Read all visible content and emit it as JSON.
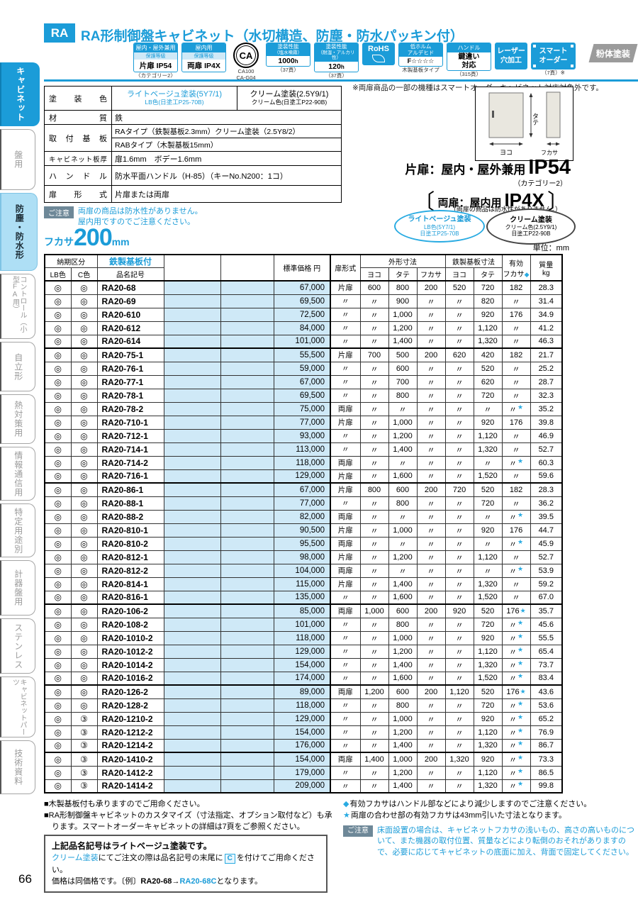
{
  "page_number": "66",
  "sidebar": {
    "tabs": [
      {
        "label": "キャビネット",
        "style": "active"
      },
      {
        "label": "盤用",
        "style": ""
      },
      {
        "label": "防塵・防水形",
        "style": "sub"
      },
      {
        "label": "コントロール（小型FA用）",
        "style": "small"
      },
      {
        "label": "自立形",
        "style": ""
      },
      {
        "label": "熱対策用",
        "style": ""
      },
      {
        "label": "情報通信用",
        "style": ""
      },
      {
        "label": "特定用途別",
        "style": ""
      },
      {
        "label": "計器盤用",
        "style": ""
      },
      {
        "label": "ステンレス",
        "style": ""
      },
      {
        "label": "キャビネットパーツ",
        "style": "small"
      },
      {
        "label": "技術資料",
        "style": ""
      }
    ]
  },
  "header": {
    "ra": "RA",
    "title": "RA形制御盤キャビネット（水切構造、防塵・防水パッキン付）",
    "badges": [
      {
        "type": "ip",
        "name": "indoor-outdoor-ip54",
        "top": "屋内・屋外兼用",
        "mid": "保護等級",
        "main": "片扉 IP54",
        "caption": "〈カテゴリー2〉"
      },
      {
        "type": "ip",
        "name": "indoor-ip4x",
        "top": "屋内用",
        "mid": "保護等級",
        "main": "両扉 IP4X",
        "caption": ""
      },
      {
        "type": "ca",
        "name": "ca-mark",
        "main": "CA",
        "caption": "CA100\nCA-G04"
      },
      {
        "type": "perf",
        "name": "paint-salt-spray",
        "top": "塗装性能",
        "sub": "（塩水噴霧）",
        "num": "1000",
        "unit": "h",
        "caption": "（37頁）"
      },
      {
        "type": "perf",
        "name": "paint-humidity",
        "top": "塗装性能",
        "sub": "（耐湿・アルカリ性）",
        "num": "120",
        "unit": "h",
        "caption": "（37頁）"
      },
      {
        "type": "rohs",
        "name": "rohs",
        "main": "RoHS",
        "caption": ""
      },
      {
        "type": "f4",
        "name": "low-formaldehyde",
        "top": "低ホルム\nアルデヒド",
        "main": "F☆☆☆☆",
        "caption": "木製基板タイプ"
      },
      {
        "type": "handle",
        "name": "handle-key",
        "top": "ハンドル",
        "main": "鍵違い\n対応",
        "caption": "（315頁）"
      },
      {
        "type": "solid",
        "name": "laser-hole",
        "main": "レーザー\n穴加工",
        "caption": ""
      },
      {
        "type": "smart",
        "name": "smart-order",
        "main": "スマート\nオーダー",
        "caption": "（7頁）※"
      }
    ],
    "powder": "粉体塗装"
  },
  "spec": {
    "r1": {
      "label": "塗　装　色",
      "lb_line1": "ライトベージュ塗装(5Y7/1)",
      "lb_line2": "LB色(日塗工P25-70B)",
      "c_line1": "クリーム塗装(2.5Y9/1)",
      "c_line2": "クリーム色(日塗工P22-90B)"
    },
    "r2": {
      "label": "材　　質",
      "value": "鉄"
    },
    "r3": {
      "label": "取 付 基 板",
      "value1": "RAタイプ（鉄製基板2.3mm）クリーム塗装（2.5Y8/2）",
      "value2": "RABタイプ（木製基板15mm）"
    },
    "r4": {
      "label": "キャビネット板厚",
      "value": "扉1.6mm　ボデー1.6mm"
    },
    "r5": {
      "label": "ハ ン ド ル",
      "value": "防水平面ハンドル（H-85）（キーNo.N200：1コ）"
    },
    "r6": {
      "label": "扉　形　式",
      "value": "片扉または両扉"
    }
  },
  "spec_caution": {
    "label": "ご注意",
    "line1": "両扉の商品は防水性がありません。",
    "line2": "屋内用ですのでご注意ください。"
  },
  "right_info": {
    "smart_note": "※両扉商品の一部の機種はスマートオーダーキャビネット対応対象外です。",
    "diagram": {
      "yoko": "ヨコ",
      "tate": "タテ",
      "fukasa": "フカサ"
    },
    "ip": {
      "single_pre": "片扉：屋内・屋外兼用",
      "single_ip": "IP54",
      "single_cat": "（カテゴリー2）",
      "double_pre": "両扉：屋内用",
      "double_ip": "IP4X",
      "double_note": "（両扉の商品は防水性がありません。）",
      "bracket_l": "〔",
      "bracket_r": "〕"
    },
    "ovals": [
      {
        "l1": "ライトベージュ塗装",
        "l2": "LB色(5Y7/1)",
        "l3": "日塗工P25-70B"
      },
      {
        "l1": "クリーム塗装",
        "l2": "クリーム色(2.5Y9/1)",
        "l3": "日塗工P22-90B"
      }
    ],
    "unit": "単位：mm"
  },
  "depth_heading": {
    "pre": "フカサ",
    "num": "200",
    "unit": "mm"
  },
  "table": {
    "h": {
      "delivery": "納期区分",
      "lb": "LB色",
      "c": "C色",
      "steel": "鉄製基板付",
      "code": "品名記号",
      "price": "標準価格 円",
      "door": "扉形式",
      "outer": "外形寸法",
      "base": "鉄製基板寸法",
      "yoko": "ヨコ",
      "tate": "タテ",
      "fukasa": "フカサ",
      "eff1": "有効",
      "eff2": "フカサ",
      "eff_mark": "◆",
      "mass": "質量",
      "mass_unit": "kg"
    },
    "rows": [
      {
        "g": true,
        "lb": "◎",
        "c": "◎",
        "code": "RA20-68",
        "price": "67,000",
        "door": "片扉",
        "w": "600",
        "h": "800",
        "d": "200",
        "bw": "520",
        "bh": "720",
        "ed": "182",
        "star": false,
        "kg": "28.3"
      },
      {
        "lb": "◎",
        "c": "◎",
        "code": "RA20-69",
        "price": "69,500",
        "door": "〃",
        "w": "〃",
        "h": "900",
        "d": "〃",
        "bw": "〃",
        "bh": "820",
        "ed": "〃",
        "star": false,
        "kg": "31.4"
      },
      {
        "lb": "◎",
        "c": "◎",
        "code": "RA20-610",
        "price": "72,500",
        "door": "〃",
        "w": "〃",
        "h": "1,000",
        "d": "〃",
        "bw": "〃",
        "bh": "920",
        "ed": "176",
        "star": false,
        "kg": "34.9"
      },
      {
        "lb": "◎",
        "c": "◎",
        "code": "RA20-612",
        "price": "84,000",
        "door": "〃",
        "w": "〃",
        "h": "1,200",
        "d": "〃",
        "bw": "〃",
        "bh": "1,120",
        "ed": "〃",
        "star": false,
        "kg": "41.2"
      },
      {
        "lb": "◎",
        "c": "◎",
        "code": "RA20-614",
        "price": "101,000",
        "door": "〃",
        "w": "〃",
        "h": "1,400",
        "d": "〃",
        "bw": "〃",
        "bh": "1,320",
        "ed": "〃",
        "star": false,
        "kg": "46.3"
      },
      {
        "g": true,
        "lb": "◎",
        "c": "◎",
        "code": "RA20-75-1",
        "price": "55,500",
        "door": "片扉",
        "w": "700",
        "h": "500",
        "d": "200",
        "bw": "620",
        "bh": "420",
        "ed": "182",
        "star": false,
        "kg": "21.7"
      },
      {
        "lb": "◎",
        "c": "◎",
        "code": "RA20-76-1",
        "price": "59,000",
        "door": "〃",
        "w": "〃",
        "h": "600",
        "d": "〃",
        "bw": "〃",
        "bh": "520",
        "ed": "〃",
        "star": false,
        "kg": "25.2"
      },
      {
        "lb": "◎",
        "c": "◎",
        "code": "RA20-77-1",
        "price": "67,000",
        "door": "〃",
        "w": "〃",
        "h": "700",
        "d": "〃",
        "bw": "〃",
        "bh": "620",
        "ed": "〃",
        "star": false,
        "kg": "28.7"
      },
      {
        "lb": "◎",
        "c": "◎",
        "code": "RA20-78-1",
        "price": "69,500",
        "door": "〃",
        "w": "〃",
        "h": "800",
        "d": "〃",
        "bw": "〃",
        "bh": "720",
        "ed": "〃",
        "star": false,
        "kg": "32.3"
      },
      {
        "lb": "◎",
        "c": "◎",
        "code": "RA20-78-2",
        "price": "75,000",
        "door": "両扉",
        "w": "〃",
        "h": "〃",
        "d": "〃",
        "bw": "〃",
        "bh": "〃",
        "ed": "〃",
        "star": true,
        "kg": "35.2"
      },
      {
        "lb": "◎",
        "c": "◎",
        "code": "RA20-710-1",
        "price": "77,000",
        "door": "片扉",
        "w": "〃",
        "h": "1,000",
        "d": "〃",
        "bw": "〃",
        "bh": "920",
        "ed": "176",
        "star": false,
        "kg": "39.8"
      },
      {
        "lb": "◎",
        "c": "◎",
        "code": "RA20-712-1",
        "price": "93,000",
        "door": "〃",
        "w": "〃",
        "h": "1,200",
        "d": "〃",
        "bw": "〃",
        "bh": "1,120",
        "ed": "〃",
        "star": false,
        "kg": "46.9"
      },
      {
        "lb": "◎",
        "c": "◎",
        "code": "RA20-714-1",
        "price": "113,000",
        "door": "〃",
        "w": "〃",
        "h": "1,400",
        "d": "〃",
        "bw": "〃",
        "bh": "1,320",
        "ed": "〃",
        "star": false,
        "kg": "52.7"
      },
      {
        "lb": "◎",
        "c": "◎",
        "code": "RA20-714-2",
        "price": "118,000",
        "door": "両扉",
        "w": "〃",
        "h": "〃",
        "d": "〃",
        "bw": "〃",
        "bh": "〃",
        "ed": "〃",
        "star": true,
        "kg": "60.3"
      },
      {
        "lb": "◎",
        "c": "◎",
        "code": "RA20-716-1",
        "price": "129,000",
        "door": "片扉",
        "w": "〃",
        "h": "1,600",
        "d": "〃",
        "bw": "〃",
        "bh": "1,520",
        "ed": "〃",
        "star": false,
        "kg": "59.6"
      },
      {
        "g": true,
        "lb": "◎",
        "c": "◎",
        "code": "RA20-86-1",
        "price": "67,000",
        "door": "片扉",
        "w": "800",
        "h": "600",
        "d": "200",
        "bw": "720",
        "bh": "520",
        "ed": "182",
        "star": false,
        "kg": "28.3"
      },
      {
        "lb": "◎",
        "c": "◎",
        "code": "RA20-88-1",
        "price": "77,000",
        "door": "〃",
        "w": "〃",
        "h": "800",
        "d": "〃",
        "bw": "〃",
        "bh": "720",
        "ed": "〃",
        "star": false,
        "kg": "36.2"
      },
      {
        "lb": "◎",
        "c": "◎",
        "code": "RA20-88-2",
        "price": "82,000",
        "door": "両扉",
        "w": "〃",
        "h": "〃",
        "d": "〃",
        "bw": "〃",
        "bh": "〃",
        "ed": "〃",
        "star": true,
        "kg": "39.5"
      },
      {
        "lb": "◎",
        "c": "◎",
        "code": "RA20-810-1",
        "price": "90,500",
        "door": "片扉",
        "w": "〃",
        "h": "1,000",
        "d": "〃",
        "bw": "〃",
        "bh": "920",
        "ed": "176",
        "star": false,
        "kg": "44.7"
      },
      {
        "lb": "◎",
        "c": "◎",
        "code": "RA20-810-2",
        "price": "95,500",
        "door": "両扉",
        "w": "〃",
        "h": "〃",
        "d": "〃",
        "bw": "〃",
        "bh": "〃",
        "ed": "〃",
        "star": true,
        "kg": "45.9"
      },
      {
        "lb": "◎",
        "c": "◎",
        "code": "RA20-812-1",
        "price": "98,000",
        "door": "片扉",
        "w": "〃",
        "h": "1,200",
        "d": "〃",
        "bw": "〃",
        "bh": "1,120",
        "ed": "〃",
        "star": false,
        "kg": "52.7"
      },
      {
        "lb": "◎",
        "c": "◎",
        "code": "RA20-812-2",
        "price": "104,000",
        "door": "両扉",
        "w": "〃",
        "h": "〃",
        "d": "〃",
        "bw": "〃",
        "bh": "〃",
        "ed": "〃",
        "star": true,
        "kg": "53.9"
      },
      {
        "lb": "◎",
        "c": "◎",
        "code": "RA20-814-1",
        "price": "115,000",
        "door": "片扉",
        "w": "〃",
        "h": "1,400",
        "d": "〃",
        "bw": "〃",
        "bh": "1,320",
        "ed": "〃",
        "star": false,
        "kg": "59.2"
      },
      {
        "lb": "◎",
        "c": "◎",
        "code": "RA20-816-1",
        "price": "135,000",
        "door": "〃",
        "w": "〃",
        "h": "1,600",
        "d": "〃",
        "bw": "〃",
        "bh": "1,520",
        "ed": "〃",
        "star": false,
        "kg": "67.0"
      },
      {
        "g": true,
        "lb": "◎",
        "c": "◎",
        "code": "RA20-106-2",
        "price": "85,000",
        "door": "両扉",
        "w": "1,000",
        "h": "600",
        "d": "200",
        "bw": "920",
        "bh": "520",
        "ed": "176",
        "star": true,
        "kg": "35.7"
      },
      {
        "lb": "◎",
        "c": "◎",
        "code": "RA20-108-2",
        "price": "101,000",
        "door": "〃",
        "w": "〃",
        "h": "800",
        "d": "〃",
        "bw": "〃",
        "bh": "720",
        "ed": "〃",
        "star": true,
        "kg": "45.6"
      },
      {
        "lb": "◎",
        "c": "◎",
        "code": "RA20-1010-2",
        "price": "118,000",
        "door": "〃",
        "w": "〃",
        "h": "1,000",
        "d": "〃",
        "bw": "〃",
        "bh": "920",
        "ed": "〃",
        "star": true,
        "kg": "55.5"
      },
      {
        "lb": "◎",
        "c": "◎",
        "code": "RA20-1012-2",
        "price": "129,000",
        "door": "〃",
        "w": "〃",
        "h": "1,200",
        "d": "〃",
        "bw": "〃",
        "bh": "1,120",
        "ed": "〃",
        "star": true,
        "kg": "65.4"
      },
      {
        "lb": "◎",
        "c": "◎",
        "code": "RA20-1014-2",
        "price": "154,000",
        "door": "〃",
        "w": "〃",
        "h": "1,400",
        "d": "〃",
        "bw": "〃",
        "bh": "1,320",
        "ed": "〃",
        "star": true,
        "kg": "73.7"
      },
      {
        "lb": "◎",
        "c": "◎",
        "code": "RA20-1016-2",
        "price": "174,000",
        "door": "〃",
        "w": "〃",
        "h": "1,600",
        "d": "〃",
        "bw": "〃",
        "bh": "1,520",
        "ed": "〃",
        "star": true,
        "kg": "83.4"
      },
      {
        "g": true,
        "lb": "◎",
        "c": "◎",
        "code": "RA20-126-2",
        "price": "89,000",
        "door": "両扉",
        "w": "1,200",
        "h": "600",
        "d": "200",
        "bw": "1,120",
        "bh": "520",
        "ed": "176",
        "star": true,
        "kg": "43.6"
      },
      {
        "lb": "◎",
        "c": "◎",
        "code": "RA20-128-2",
        "price": "118,000",
        "door": "〃",
        "w": "〃",
        "h": "800",
        "d": "〃",
        "bw": "〃",
        "bh": "720",
        "ed": "〃",
        "star": true,
        "kg": "53.6"
      },
      {
        "lb": "◎",
        "c": "③",
        "code": "RA20-1210-2",
        "price": "129,000",
        "door": "〃",
        "w": "〃",
        "h": "1,000",
        "d": "〃",
        "bw": "〃",
        "bh": "920",
        "ed": "〃",
        "star": true,
        "kg": "65.2"
      },
      {
        "lb": "◎",
        "c": "③",
        "code": "RA20-1212-2",
        "price": "154,000",
        "door": "〃",
        "w": "〃",
        "h": "1,200",
        "d": "〃",
        "bw": "〃",
        "bh": "1,120",
        "ed": "〃",
        "star": true,
        "kg": "76.9"
      },
      {
        "lb": "◎",
        "c": "③",
        "code": "RA20-1214-2",
        "price": "176,000",
        "door": "〃",
        "w": "〃",
        "h": "1,400",
        "d": "〃",
        "bw": "〃",
        "bh": "1,320",
        "ed": "〃",
        "star": true,
        "kg": "86.7"
      },
      {
        "g": true,
        "lb": "◎",
        "c": "③",
        "code": "RA20-1410-2",
        "price": "154,000",
        "door": "両扉",
        "w": "1,400",
        "h": "1,000",
        "d": "200",
        "bw": "1,320",
        "bh": "920",
        "ed": "〃",
        "star": true,
        "kg": "73.3"
      },
      {
        "lb": "◎",
        "c": "③",
        "code": "RA20-1412-2",
        "price": "179,000",
        "door": "〃",
        "w": "〃",
        "h": "1,200",
        "d": "〃",
        "bw": "〃",
        "bh": "1,120",
        "ed": "〃",
        "star": true,
        "kg": "86.5"
      },
      {
        "lb": "◎",
        "c": "③",
        "code": "RA20-1414-2",
        "price": "209,000",
        "door": "〃",
        "w": "〃",
        "h": "1,400",
        "d": "〃",
        "bw": "〃",
        "bh": "1,320",
        "ed": "〃",
        "star": true,
        "kg": "99.8"
      }
    ]
  },
  "footer": {
    "left_notes": [
      "■木製基板付も承りますのでご用命ください。",
      "■RA形制御盤キャビネットのカスタマイズ（寸法指定、オプション取付など）も承ります。スマートオーダーキャビネットの詳細は7頁をご参照ください。"
    ],
    "order_note": {
      "title": "上記品名記号はライトベージュ塗装です。",
      "line2": [
        {
          "t": "クリーム塗装",
          "c": "blue"
        },
        {
          "t": "にてご注文の際は品名記号の末尾に"
        },
        {
          "t": "C",
          "c": "c-badge"
        },
        {
          "t": "を付けてご用命ください。"
        }
      ],
      "line3": [
        {
          "t": "価格は同価格です。〔例〕"
        },
        {
          "t": "RA20-68",
          "c": "bold"
        },
        {
          "t": "→",
          "c": "bold"
        },
        {
          "t": "RA20-68C",
          "c": "bluebold"
        },
        {
          "t": "となります。"
        }
      ]
    },
    "right_notes": [
      {
        "mark": "◆",
        "text": "有効フカサはハンドル部などにより減少しますのでご注意ください。"
      },
      {
        "mark": "★",
        "text": "両扉の合わせ部の有効フカサは43mm引いた寸法となります。"
      }
    ],
    "caution": {
      "label": "ご注意",
      "text": "床面設置の場合は、キャビネットフカサの浅いもの、高さの高いものについて、また機器の取付位置、質量などにより転倒のおそれがありますので、必要に応じてキャビネットの底面に加え、背面で固定してください。"
    }
  },
  "colors": {
    "accent_blue": "#1b9cd8",
    "shade_blue": "#cfe9f7",
    "star_blue": "#29abe2",
    "tab_light_blue": "#aedff5"
  }
}
